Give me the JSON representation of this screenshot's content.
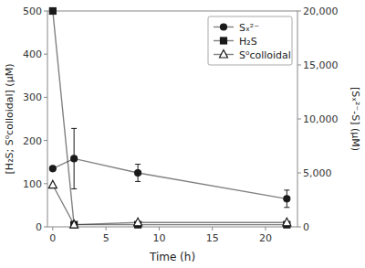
{
  "chart_data": {
    "type": "line",
    "x": [
      0,
      2,
      8,
      22
    ],
    "xlim": [
      -0.5,
      23
    ],
    "xticks": [
      0,
      5,
      10,
      15,
      20
    ],
    "ylim": [
      0,
      500
    ],
    "yticks": [
      0,
      100,
      200,
      300,
      400,
      500
    ],
    "y2lim": [
      0,
      20000
    ],
    "y2ticks": [
      0,
      {
        "value": 5000,
        "label": "5,000"
      },
      {
        "value": 10000,
        "label": "10,000"
      },
      {
        "value": 15000,
        "label": "15,000"
      },
      {
        "value": 20000,
        "label": "20,000"
      }
    ],
    "x_label": "Time (h)",
    "y_label": "[H₂S; S⁰colloidal] (μM)",
    "y2_label": "[Sₓ²⁻-S] (μM)",
    "legend": "upper right",
    "grid": false,
    "series": [
      {
        "name": "Sₓ²⁻",
        "axis": "y2",
        "color": "#1a1a1a",
        "marker": "circle",
        "line_style": "solid",
        "values": [
          5400,
          6320,
          5000,
          2600
        ],
        "errors": [
          0,
          2800,
          800,
          800
        ]
      },
      {
        "name": "H₂S",
        "axis": "y",
        "color": "#1a1a1a",
        "marker": "square",
        "line_style": "solid",
        "values": [
          500,
          5,
          5,
          5
        ]
      },
      {
        "name": "S⁰colloidal",
        "axis": "y",
        "color": "#1a1a1a",
        "marker": "triangle-open",
        "line_style": "solid",
        "values": [
          97,
          5,
          10,
          10
        ]
      }
    ]
  }
}
